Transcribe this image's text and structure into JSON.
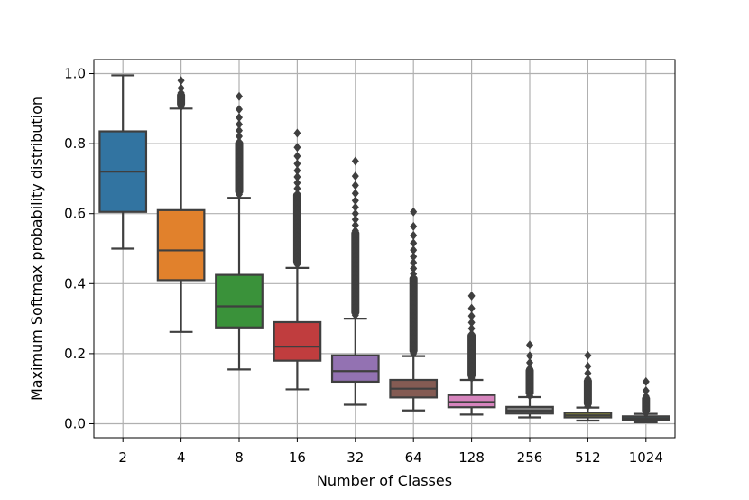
{
  "chart_data": {
    "type": "box",
    "title": "",
    "xlabel": "Number of Classes",
    "ylabel": "Maximum Softmax probability distribution",
    "ylim": [
      -0.04,
      1.04
    ],
    "yticks": [
      0.0,
      0.2,
      0.4,
      0.6,
      0.8,
      1.0
    ],
    "ytick_labels": [
      "0.0",
      "0.2",
      "0.4",
      "0.6",
      "0.8",
      "1.0"
    ],
    "grid": true,
    "categories": [
      "2",
      "4",
      "8",
      "16",
      "32",
      "64",
      "128",
      "256",
      "512",
      "1024"
    ],
    "boxes": [
      {
        "category": "2",
        "color": "#3274a1",
        "q1": 0.605,
        "median": 0.72,
        "q3": 0.835,
        "whisker_low": 0.5,
        "whisker_high": 0.995,
        "outlier_low": null,
        "outlier_high": null
      },
      {
        "category": "4",
        "color": "#e1812c",
        "q1": 0.41,
        "median": 0.495,
        "q3": 0.61,
        "whisker_low": 0.262,
        "whisker_high": 0.9,
        "outlier_low": 0.905,
        "outlier_high": 0.98
      },
      {
        "category": "8",
        "color": "#3a923a",
        "q1": 0.275,
        "median": 0.335,
        "q3": 0.425,
        "whisker_low": 0.155,
        "whisker_high": 0.645,
        "outlier_low": 0.655,
        "outlier_high": 0.935
      },
      {
        "category": "16",
        "color": "#c03d3e",
        "q1": 0.18,
        "median": 0.22,
        "q3": 0.29,
        "whisker_low": 0.098,
        "whisker_high": 0.445,
        "outlier_low": 0.455,
        "outlier_high": 0.83
      },
      {
        "category": "32",
        "color": "#9372b2",
        "q1": 0.12,
        "median": 0.15,
        "q3": 0.195,
        "whisker_low": 0.054,
        "whisker_high": 0.3,
        "outlier_low": 0.31,
        "outlier_high": 0.75
      },
      {
        "category": "64",
        "color": "#845b53",
        "q1": 0.075,
        "median": 0.1,
        "q3": 0.125,
        "whisker_low": 0.038,
        "whisker_high": 0.193,
        "outlier_low": 0.2,
        "outlier_high": 0.605
      },
      {
        "category": "128",
        "color": "#d684bd",
        "q1": 0.047,
        "median": 0.062,
        "q3": 0.082,
        "whisker_low": 0.026,
        "whisker_high": 0.125,
        "outlier_low": 0.13,
        "outlier_high": 0.365
      },
      {
        "category": "256",
        "color": "#7f7f7f",
        "q1": 0.029,
        "median": 0.037,
        "q3": 0.048,
        "whisker_low": 0.018,
        "whisker_high": 0.076,
        "outlier_low": 0.08,
        "outlier_high": 0.225
      },
      {
        "category": "512",
        "color": "#a9aa35",
        "q1": 0.018,
        "median": 0.024,
        "q3": 0.031,
        "whisker_low": 0.009,
        "whisker_high": 0.046,
        "outlier_low": 0.05,
        "outlier_high": 0.195
      },
      {
        "category": "1024",
        "color": "#2e9fb5",
        "q1": 0.011,
        "median": 0.015,
        "q3": 0.021,
        "whisker_low": 0.004,
        "whisker_high": 0.028,
        "outlier_low": 0.03,
        "outlier_high": 0.12
      }
    ]
  }
}
